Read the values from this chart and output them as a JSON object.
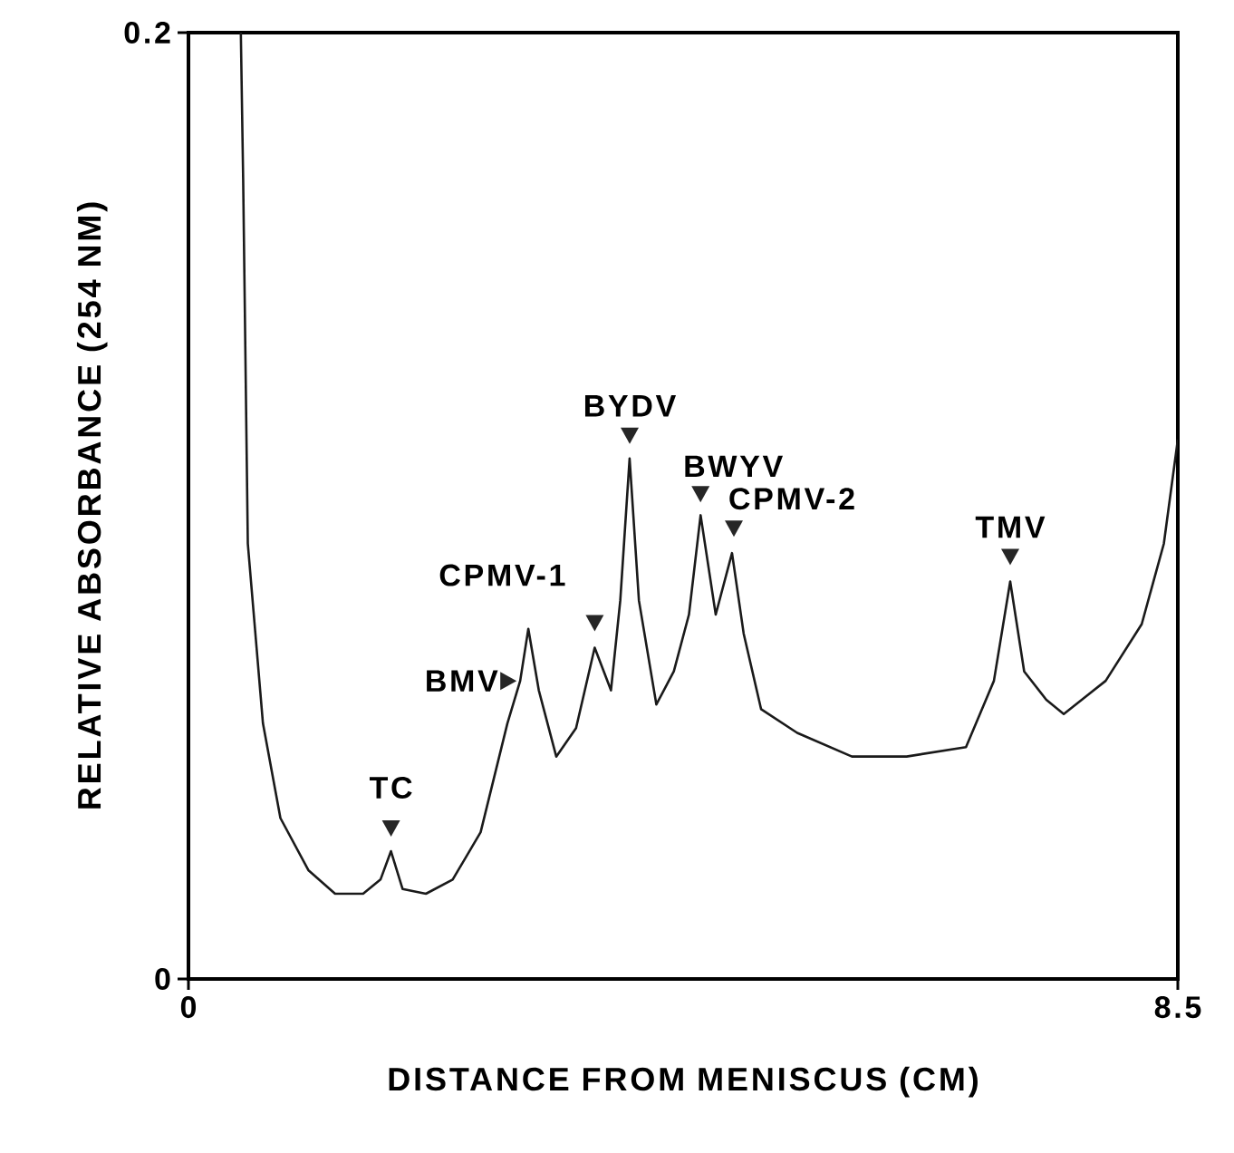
{
  "chart_data": {
    "type": "line",
    "xlabel": "DISTANCE FROM MENISCUS (CM)",
    "ylabel": "RELATIVE ABSORBANCE (254 NM)",
    "xlim": [
      0,
      8.5
    ],
    "ylim": [
      0,
      0.2
    ],
    "xticks": [
      0,
      8.5
    ],
    "yticks": [
      0,
      0.2
    ],
    "marker": "none",
    "line_style": "solid",
    "series": [
      {
        "color": "#1a1a1a",
        "x": [
          0.45,
          0.47,
          0.51,
          0.64,
          0.79,
          1.03,
          1.26,
          1.5,
          1.65,
          1.74,
          1.84,
          2.04,
          2.27,
          2.51,
          2.74,
          2.85,
          2.92,
          3.01,
          3.16,
          3.33,
          3.49,
          3.63,
          3.71,
          3.79,
          3.87,
          4.02,
          4.17,
          4.3,
          4.4,
          4.53,
          4.67,
          4.77,
          4.92,
          5.23,
          5.7,
          6.17,
          6.68,
          6.92,
          7.06,
          7.18,
          7.37,
          7.52,
          7.88,
          8.19,
          8.38,
          8.5
        ],
        "values": [
          0.2,
          0.169,
          0.092,
          0.054,
          0.034,
          0.023,
          0.018,
          0.018,
          0.021,
          0.027,
          0.019,
          0.018,
          0.021,
          0.031,
          0.054,
          0.063,
          0.074,
          0.061,
          0.047,
          0.053,
          0.07,
          0.061,
          0.08,
          0.11,
          0.08,
          0.058,
          0.065,
          0.077,
          0.098,
          0.077,
          0.09,
          0.073,
          0.057,
          0.052,
          0.047,
          0.047,
          0.049,
          0.063,
          0.084,
          0.065,
          0.059,
          0.056,
          0.063,
          0.075,
          0.092,
          0.114
        ]
      }
    ],
    "annotations": [
      {
        "text": "TC",
        "x": 1.74,
        "y": 0.027
      },
      {
        "text": "BMV",
        "x": 2.85,
        "y": 0.063
      },
      {
        "text": "CPMV-1",
        "x": 3.49,
        "y": 0.07
      },
      {
        "text": "BYDV",
        "x": 3.79,
        "y": 0.11
      },
      {
        "text": "BWYV",
        "x": 4.4,
        "y": 0.098
      },
      {
        "text": "CPMV-2",
        "x": 4.67,
        "y": 0.09
      },
      {
        "text": "TMV",
        "x": 7.06,
        "y": 0.084
      }
    ]
  }
}
